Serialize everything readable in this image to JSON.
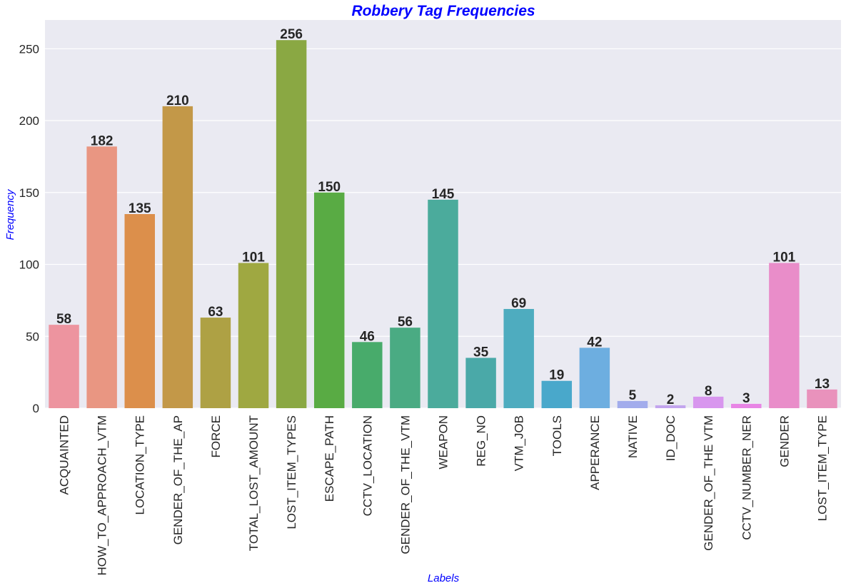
{
  "chart_data": {
    "type": "bar",
    "title": "Robbery Tag Frequencies",
    "xlabel": "Labels",
    "ylabel": "Frequency",
    "ylim": [
      0,
      270
    ],
    "yticks": [
      0,
      50,
      100,
      150,
      200,
      250
    ],
    "grid": true,
    "legend": "none",
    "categories": [
      "ACQUAINTED",
      "HOW_TO_APPROACH_VTM",
      "LOCATION_TYPE",
      "GENDER_OF_THE_AP",
      "FORCE",
      "TOTAL_LOST_AMOUNT",
      "LOST_ITEM_TYPES",
      "ESCAPE_PATH",
      "CCTV_LOCATION",
      "GENDER_OF_THE_VTM",
      "WEAPON",
      "REG_NO",
      "VTM_JOB",
      "TOOLS",
      "APPERANCE",
      "NATIVE",
      "ID_DOC",
      "GENDER_OF_THE VTM",
      "CCTV_NUMBER_NER",
      "GENDER",
      "LOST_ITEM_TYPE"
    ],
    "values": [
      58,
      182,
      135,
      210,
      63,
      101,
      256,
      150,
      46,
      56,
      145,
      35,
      69,
      19,
      42,
      5,
      2,
      8,
      3,
      101,
      13
    ],
    "colors": [
      "#ed949f",
      "#e99682",
      "#dc8f4b",
      "#c39848",
      "#aea144",
      "#9fa841",
      "#8aa843",
      "#59ab44",
      "#48ab6b",
      "#4aab83",
      "#4bab9c",
      "#4aa9a8",
      "#4eacbf",
      "#49a8cb",
      "#6daee0",
      "#a2acec",
      "#c3a5ee",
      "#d896ee",
      "#e885e5",
      "#e98dc9",
      "#e992bc"
    ],
    "title_color": "#0000ff",
    "axis_label_color": "#0000ff",
    "plot_background": "#eaeaf2",
    "grid_color": "#ffffff"
  }
}
